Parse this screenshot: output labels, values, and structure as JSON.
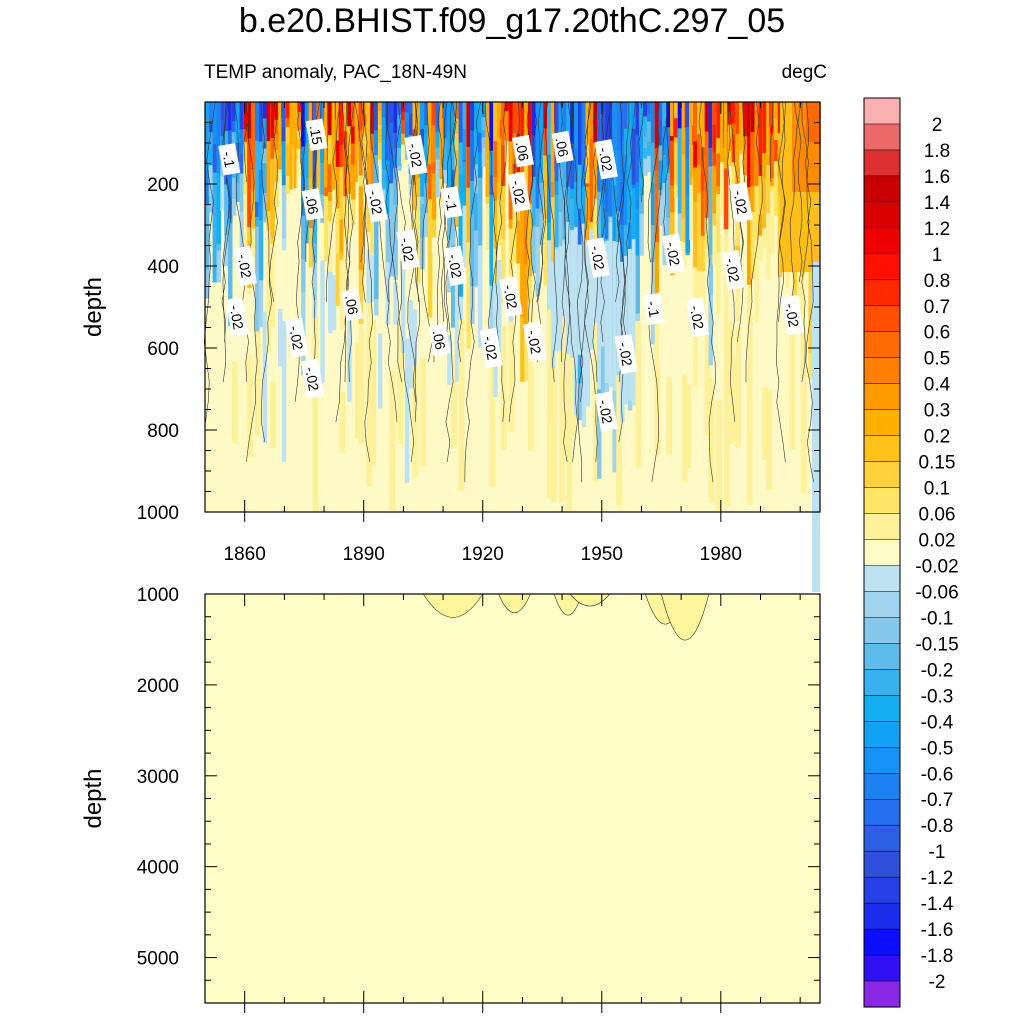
{
  "title": "b.e20.BHIST.f09_g17.20thC.297_05",
  "subtitle_left": "TEMP anomaly, PAC_18N-49N",
  "subtitle_right": "degC",
  "colors": {
    "anom_warm_lo": "#fff9c6",
    "anom_cold_lo": "#bde2f2",
    "warm_ramp": [
      "#fff9c6",
      "#fff19a",
      "#ffe566",
      "#ffd23b",
      "#ffbe1a",
      "#ffa500",
      "#ff8c00",
      "#ff6a00",
      "#ff4a00",
      "#ff2000",
      "#ee0000",
      "#d90000",
      "#c80000",
      "#dd3030",
      "#ec6a6a",
      "#f9b0b0"
    ],
    "cold_ramp": [
      "#bde2f2",
      "#9fd4ef",
      "#86c8ec",
      "#5fbbe9",
      "#38b2ee",
      "#16aef2",
      "#11a1f5",
      "#1592f5",
      "#1c82f3",
      "#246fed",
      "#2c5fe4",
      "#2f50dc",
      "#2541e5",
      "#1a2eec",
      "#0b0eff",
      "#3111f2",
      "#5a1be8",
      "#8a28e6"
    ]
  },
  "chart_data": [
    {
      "type": "heatmap",
      "name": "upper-panel",
      "xlabel": "",
      "ylabel": "depth",
      "xlim": [
        1850,
        2005
      ],
      "ylim": [
        0,
        1000
      ],
      "y_inverted": true,
      "xticks": [
        1860,
        1890,
        1920,
        1950,
        1980
      ],
      "yticks": [
        200,
        400,
        600,
        800,
        1000
      ],
      "contour_labels": [
        {
          "text": "-.1",
          "x": 1856,
          "y": 140
        },
        {
          "text": ".15",
          "x": 1878,
          "y": 80
        },
        {
          "text": "-.02",
          "x": 1903,
          "y": 130
        },
        {
          "text": ".06",
          "x": 1930,
          "y": 120
        },
        {
          "text": ".06",
          "x": 1940,
          "y": 110
        },
        {
          "text": "-.02",
          "x": 1951,
          "y": 140
        },
        {
          "text": ".06",
          "x": 1877,
          "y": 250
        },
        {
          "text": "-.02",
          "x": 1893,
          "y": 245
        },
        {
          "text": "-.1",
          "x": 1912,
          "y": 245
        },
        {
          "text": "-.02",
          "x": 1929,
          "y": 220
        },
        {
          "text": "-.02",
          "x": 1985,
          "y": 245
        },
        {
          "text": "-.02",
          "x": 1860,
          "y": 400
        },
        {
          "text": "-.02",
          "x": 1901,
          "y": 360
        },
        {
          "text": "-.02",
          "x": 1913,
          "y": 400
        },
        {
          "text": "-.02",
          "x": 1949,
          "y": 380
        },
        {
          "text": "-.02",
          "x": 1968,
          "y": 370
        },
        {
          "text": "-.02",
          "x": 1983,
          "y": 410
        },
        {
          "text": "-.02",
          "x": 1858,
          "y": 525
        },
        {
          "text": ".06",
          "x": 1887,
          "y": 495
        },
        {
          "text": "-.02",
          "x": 1927,
          "y": 475
        },
        {
          "text": "-.1",
          "x": 1963,
          "y": 505
        },
        {
          "text": "-.02",
          "x": 1974,
          "y": 525
        },
        {
          "text": "-.02",
          "x": 1998,
          "y": 520
        },
        {
          "text": "-.02",
          "x": 1873,
          "y": 575
        },
        {
          "text": ".06",
          "x": 1909,
          "y": 580
        },
        {
          "text": "-.02",
          "x": 1922,
          "y": 600
        },
        {
          "text": "-.02",
          "x": 1933,
          "y": 585
        },
        {
          "text": "-.02",
          "x": 1956,
          "y": 615
        },
        {
          "text": "-.02",
          "x": 1877,
          "y": 675
        },
        {
          "text": "-.02",
          "x": 1951,
          "y": 755
        }
      ]
    },
    {
      "type": "heatmap",
      "name": "lower-panel",
      "xlabel": "",
      "ylabel": "depth",
      "xlim": [
        1850,
        2005
      ],
      "ylim": [
        1000,
        5500
      ],
      "y_inverted": true,
      "xticks": [
        1860,
        1890,
        1920,
        1950,
        1980
      ],
      "yticks": [
        1000,
        2000,
        3000,
        4000,
        5000
      ]
    }
  ],
  "colorbar": {
    "labels": [
      "2",
      "1.8",
      "1.6",
      "1.4",
      "1.2",
      "1",
      "0.8",
      "0.7",
      "0.6",
      "0.5",
      "0.4",
      "0.3",
      "0.2",
      "0.15",
      "0.1",
      "0.06",
      "0.02",
      "-0.02",
      "-0.06",
      "-0.1",
      "-0.15",
      "-0.2",
      "-0.3",
      "-0.4",
      "-0.5",
      "-0.6",
      "-0.7",
      "-0.8",
      "-1",
      "-1.2",
      "-1.4",
      "-1.6",
      "-1.8",
      "-2"
    ],
    "colors": [
      "#f9b0b0",
      "#ec6a6a",
      "#dd3030",
      "#c80000",
      "#d90000",
      "#ee0000",
      "#ff1000",
      "#ff2a00",
      "#ff5000",
      "#ff6a00",
      "#ff8000",
      "#ff9a00",
      "#ffaf00",
      "#ffc21a",
      "#ffd23b",
      "#ffe566",
      "#fff19a",
      "#fffbc6",
      "#bde2f2",
      "#9fd4ef",
      "#86c8ec",
      "#5fbbe9",
      "#38b2ee",
      "#16aef2",
      "#11a1f5",
      "#1592f5",
      "#1c82f3",
      "#246fed",
      "#2c5fe4",
      "#2f50dc",
      "#2541e5",
      "#1a2eec",
      "#0b0eff",
      "#3111f2",
      "#8a28e6"
    ]
  }
}
